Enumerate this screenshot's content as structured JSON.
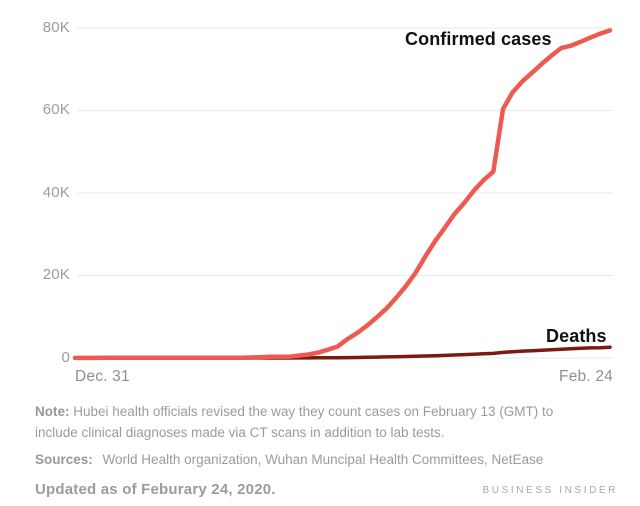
{
  "colors": {
    "confirmed_line": "#EE5A52",
    "deaths_line": "#7B1A15",
    "grid": "#E9E9E9",
    "tick_text": "#9C9C9C",
    "annotation_text": "#111111",
    "footnote_text": "#9B9B9B"
  },
  "chart_data": {
    "type": "line",
    "title": "",
    "xlabel": "",
    "ylabel": "",
    "ylim": [
      0,
      80000
    ],
    "ytick_values": [
      0,
      20000,
      40000,
      60000,
      80000
    ],
    "ytick_labels": [
      "0",
      "20K",
      "40K",
      "60K",
      "80K"
    ],
    "xtick_labels": [
      "Dec. 31",
      "Feb. 24"
    ],
    "grid": "horizontal-only",
    "legend_position": "inline-annotations",
    "x": [
      "Dec. 31",
      "Jan. 1",
      "Jan. 2",
      "Jan. 3",
      "Jan. 4",
      "Jan. 5",
      "Jan. 6",
      "Jan. 7",
      "Jan. 8",
      "Jan. 9",
      "Jan. 10",
      "Jan. 11",
      "Jan. 12",
      "Jan. 13",
      "Jan. 14",
      "Jan. 15",
      "Jan. 16",
      "Jan. 17",
      "Jan. 18",
      "Jan. 19",
      "Jan. 20",
      "Jan. 21",
      "Jan. 22",
      "Jan. 23",
      "Jan. 24",
      "Jan. 25",
      "Jan. 26",
      "Jan. 27",
      "Jan. 28",
      "Jan. 29",
      "Jan. 30",
      "Jan. 31",
      "Feb. 1",
      "Feb. 2",
      "Feb. 3",
      "Feb. 4",
      "Feb. 5",
      "Feb. 6",
      "Feb. 7",
      "Feb. 8",
      "Feb. 9",
      "Feb. 10",
      "Feb. 11",
      "Feb. 12",
      "Feb. 13",
      "Feb. 14",
      "Feb. 15",
      "Feb. 16",
      "Feb. 17",
      "Feb. 18",
      "Feb. 19",
      "Feb. 20",
      "Feb. 21",
      "Feb. 22",
      "Feb. 23",
      "Feb. 24"
    ],
    "series": [
      {
        "name": "Confirmed cases",
        "color": "#EE5A52",
        "stroke_width": 4.5,
        "values": [
          27,
          27,
          27,
          44,
          44,
          59,
          59,
          59,
          59,
          59,
          41,
          41,
          41,
          45,
          45,
          46,
          50,
          62,
          121,
          202,
          291,
          282,
          314,
          581,
          846,
          1320,
          2014,
          2798,
          4593,
          6065,
          7818,
          9826,
          11953,
          14557,
          17391,
          20630,
          24554,
          28276,
          31481,
          34886,
          37558,
          40554,
          43103,
          45171,
          60363,
          64435,
          67100,
          69197,
          71329,
          73332,
          75184,
          75700,
          76677,
          77673,
          78651,
          79407
        ]
      },
      {
        "name": "Deaths",
        "color": "#7B1A15",
        "stroke_width": 3.5,
        "values": [
          0,
          0,
          0,
          0,
          0,
          0,
          0,
          0,
          0,
          1,
          1,
          1,
          1,
          1,
          1,
          2,
          2,
          2,
          3,
          3,
          3,
          6,
          9,
          17,
          25,
          41,
          56,
          80,
          106,
          132,
          170,
          213,
          259,
          304,
          362,
          426,
          492,
          564,
          637,
          724,
          813,
          910,
          1018,
          1115,
          1369,
          1523,
          1669,
          1775,
          1873,
          2009,
          2126,
          2247,
          2360,
          2460,
          2470,
          2619
        ]
      }
    ]
  },
  "chart": {
    "annotations": {
      "confirmed": "Confirmed cases",
      "deaths": "Deaths"
    }
  },
  "footer": {
    "note_label": "Note:",
    "note_text": "Hubei health officials revised the way they count cases on February 13 (GMT) to include clinical diagnoses made via CT scans in addition to lab tests.",
    "sources_label": "Sources:",
    "sources_text": "World Health organization, Wuhan Muncipal Health Committees, NetEase",
    "updated_text": "Updated as of Feburary 24, 2020.",
    "brand": "BUSINESS INSIDER"
  }
}
